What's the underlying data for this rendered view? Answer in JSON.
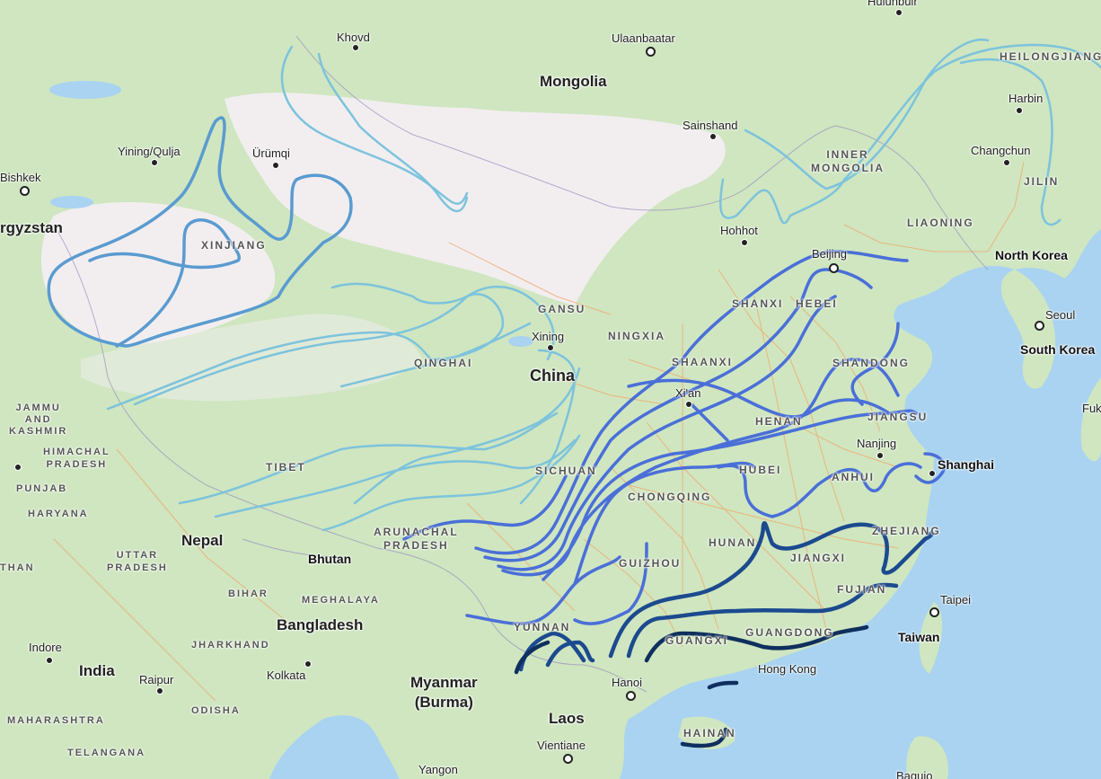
{
  "map": {
    "countries": [
      {
        "id": "mongolia",
        "text": "Mongolia"
      },
      {
        "id": "china",
        "text": "China"
      },
      {
        "id": "kyrgyzstan",
        "text": "rgyzstan"
      },
      {
        "id": "north-korea",
        "text": "North Korea"
      },
      {
        "id": "south-korea",
        "text": "South Korea"
      },
      {
        "id": "nepal",
        "text": "Nepal"
      },
      {
        "id": "bhutan",
        "text": "Bhutan"
      },
      {
        "id": "bangladesh",
        "text": "Bangladesh"
      },
      {
        "id": "india",
        "text": "India"
      },
      {
        "id": "myanmar",
        "text": "Myanmar\n(Burma)"
      },
      {
        "id": "laos",
        "text": "Laos"
      },
      {
        "id": "taiwan",
        "text": "Taiwan"
      }
    ],
    "cities": [
      {
        "id": "hulunbuir",
        "text": "Hulunbuir"
      },
      {
        "id": "khovd",
        "text": "Khovd"
      },
      {
        "id": "ulaanbaatar",
        "text": "Ulaanbaatar"
      },
      {
        "id": "harbin",
        "text": "Harbin"
      },
      {
        "id": "sainshand",
        "text": "Sainshand"
      },
      {
        "id": "changchun",
        "text": "Changchun"
      },
      {
        "id": "yining",
        "text": "Yining/Qulja"
      },
      {
        "id": "urumqi",
        "text": "Ürümqi"
      },
      {
        "id": "bishkek",
        "text": "Bishkek"
      },
      {
        "id": "hohhot",
        "text": "Hohhot"
      },
      {
        "id": "beijing",
        "text": "Beijing"
      },
      {
        "id": "seoul",
        "text": "Seoul"
      },
      {
        "id": "xining",
        "text": "Xining"
      },
      {
        "id": "xian",
        "text": "Xi'an"
      },
      {
        "id": "nanjing",
        "text": "Nanjing"
      },
      {
        "id": "shanghai",
        "text": "Shanghai"
      },
      {
        "id": "taipei",
        "text": "Taipei"
      },
      {
        "id": "hongkong",
        "text": "Hong Kong"
      },
      {
        "id": "hanoi",
        "text": "Hanoi"
      },
      {
        "id": "vientiane",
        "text": "Vientiane"
      },
      {
        "id": "yangon",
        "text": "Yangon"
      },
      {
        "id": "kolkata",
        "text": "Kolkata"
      },
      {
        "id": "raipur",
        "text": "Raipur"
      },
      {
        "id": "indore",
        "text": "Indore"
      },
      {
        "id": "fuk",
        "text": "Fuk"
      },
      {
        "id": "baguio",
        "text": "Baguio"
      }
    ],
    "regions": [
      {
        "id": "heilongjiang",
        "text": "HEILONGJIANG"
      },
      {
        "id": "inner-mongolia",
        "text": "INNER\nMONGOLIA"
      },
      {
        "id": "jilin",
        "text": "JILIN"
      },
      {
        "id": "liaoning",
        "text": "LIAONING"
      },
      {
        "id": "xinjiang",
        "text": "XINJIANG"
      },
      {
        "id": "gansu",
        "text": "GANSU"
      },
      {
        "id": "ningxia",
        "text": "NINGXIA"
      },
      {
        "id": "shanxi",
        "text": "SHANXI"
      },
      {
        "id": "hebei",
        "text": "HEBEI"
      },
      {
        "id": "shandong",
        "text": "SHANDONG"
      },
      {
        "id": "shaanxi",
        "text": "SHAANXI"
      },
      {
        "id": "qinghai",
        "text": "QINGHAI"
      },
      {
        "id": "henan",
        "text": "HENAN"
      },
      {
        "id": "jiangsu",
        "text": "JIANGSU"
      },
      {
        "id": "tibet",
        "text": "TIBET"
      },
      {
        "id": "sichuan",
        "text": "SICHUAN"
      },
      {
        "id": "hubei",
        "text": "HUBEI"
      },
      {
        "id": "anhui",
        "text": "ANHUI"
      },
      {
        "id": "chongqing",
        "text": "CHONGQING"
      },
      {
        "id": "zhejiang",
        "text": "ZHEJIANG"
      },
      {
        "id": "hunan",
        "text": "HUNAN"
      },
      {
        "id": "jiangxi",
        "text": "JIANGXI"
      },
      {
        "id": "arunachal",
        "text": "ARUNACHAL\nPRADESH"
      },
      {
        "id": "guizhou",
        "text": "GUIZHOU"
      },
      {
        "id": "fujian",
        "text": "FUJIAN"
      },
      {
        "id": "yunnan",
        "text": "YUNNAN"
      },
      {
        "id": "guangxi",
        "text": "GUANGXI"
      },
      {
        "id": "guangdong",
        "text": "GUANGDONG"
      },
      {
        "id": "hainan",
        "text": "HAINAN"
      },
      {
        "id": "jammu",
        "text": "JAMMU\nAND\nKASHMIR"
      },
      {
        "id": "himachal",
        "text": "HIMACHAL\nPRADESH"
      },
      {
        "id": "punjab",
        "text": "PUNJAB"
      },
      {
        "id": "haryana",
        "text": "HARYANA"
      },
      {
        "id": "uttar",
        "text": "UTTAR\nPRADESH"
      },
      {
        "id": "than",
        "text": "THAN"
      },
      {
        "id": "bihar",
        "text": "BIHAR"
      },
      {
        "id": "meghalaya",
        "text": "MEGHALAYA"
      },
      {
        "id": "jharkhand",
        "text": "JHARKHAND"
      },
      {
        "id": "odisha",
        "text": "ODISHA"
      },
      {
        "id": "maharashtra",
        "text": "MAHARASHTRA"
      },
      {
        "id": "telangana",
        "text": "TELANGANA"
      }
    ],
    "colors": {
      "water": "#a9d3f1",
      "land": "#cfe6c0",
      "desert": "#f2eef0",
      "isoline_light": "#7dc3dc",
      "isoline_mid": "#4f8fd6",
      "isoline_blue": "#3d64d8",
      "isoline_dark": "#123a7a"
    }
  }
}
